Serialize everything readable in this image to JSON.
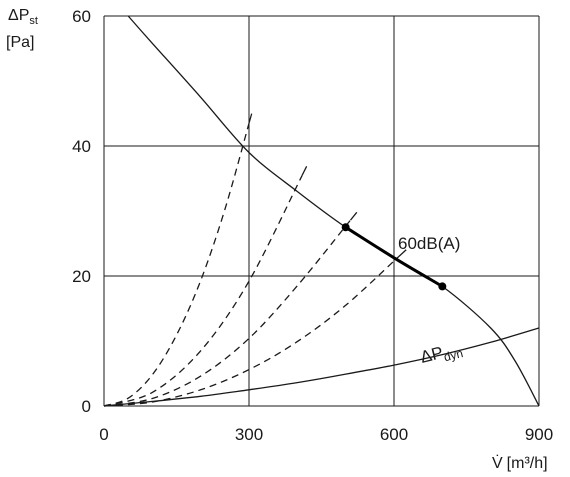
{
  "chart_data": {
    "type": "line",
    "xlabel_symbol": "V̇",
    "xlabel_unit": "[m³/h]",
    "ylabel_symbol": "ΔP",
    "ylabel_sub": "st",
    "ylabel_unit": "[Pa]",
    "xlim": [
      0,
      900
    ],
    "ylim": [
      0,
      60
    ],
    "xticks": [
      "0",
      "300",
      "600",
      "900"
    ],
    "yticks": [
      "0",
      "20",
      "40",
      "60"
    ],
    "grid": true,
    "series": [
      {
        "role": "fan curve (ΔPst)",
        "style": "solid",
        "x": [
          50,
          100,
          200,
          300,
          400,
          500,
          600,
          700,
          800,
          850,
          900
        ],
        "y": [
          60,
          55.8,
          47.5,
          39,
          33,
          27.5,
          22.8,
          18.4,
          12,
          7,
          0
        ]
      },
      {
        "role": "dynamic pressure",
        "name": "ΔP",
        "name_sub": "dyn",
        "style": "solid",
        "x": [
          0,
          100,
          200,
          300,
          400,
          500,
          600,
          700,
          800,
          900
        ],
        "y": [
          0,
          0.7,
          1.5,
          2.5,
          3.6,
          4.9,
          6.3,
          7.9,
          9.8,
          12
        ]
      },
      {
        "role": "system curve 1",
        "style": "dashed",
        "x": [
          0,
          50,
          100,
          150,
          200,
          250,
          300
        ],
        "y": [
          0,
          1.2,
          4.8,
          10.9,
          19.3,
          30.2,
          43.5
        ]
      },
      {
        "role": "system curve 2",
        "style": "dashed",
        "x": [
          0,
          100,
          200,
          300,
          410
        ],
        "y": [
          0,
          2.1,
          8.5,
          19.2,
          35.5
        ]
      },
      {
        "role": "system curve 3",
        "style": "dashed",
        "x": [
          0,
          100,
          200,
          300,
          400,
          510
        ],
        "y": [
          0,
          1.15,
          4.6,
          10.4,
          18.5,
          28.6
        ]
      },
      {
        "role": "system curve 4",
        "style": "dashed",
        "x": [
          0,
          100,
          200,
          300,
          400,
          500,
          610
        ],
        "y": [
          0,
          0.62,
          2.5,
          5.6,
          9.9,
          15.5,
          23
        ]
      }
    ],
    "highlight_segment": {
      "label": "60dB(A)",
      "points": [
        [
          500,
          27.5
        ],
        [
          600,
          22.8
        ],
        [
          700,
          18.4
        ]
      ]
    }
  }
}
